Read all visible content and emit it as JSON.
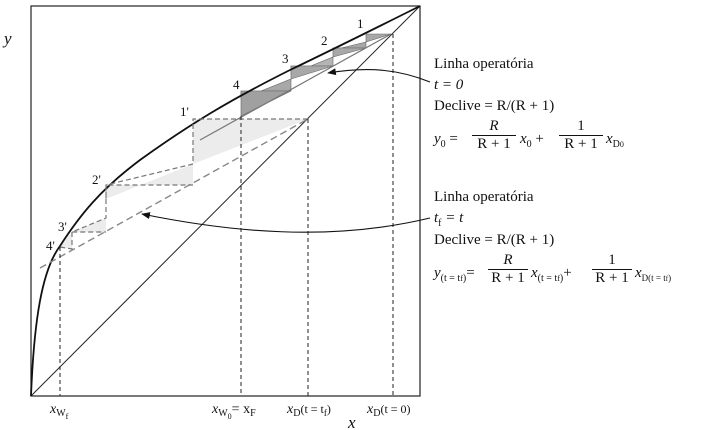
{
  "axes": {
    "x_label": "x",
    "y_label": "y"
  },
  "x_ticks": [
    {
      "id": "xwf",
      "main": "x",
      "sub": "W",
      "subsub": "f",
      "tail": ""
    },
    {
      "id": "xw0",
      "main": "x",
      "sub": "W",
      "subsub": "0",
      "tail": "= x",
      "tail_sub": "F"
    },
    {
      "id": "xdtf",
      "main": "x",
      "sub": "D",
      "tail": "(t = t",
      "tail_sub": "f",
      "tail_end": ")"
    },
    {
      "id": "xdt0",
      "main": "x",
      "sub": "D",
      "tail": "(t = 0)"
    }
  ],
  "stage_labels_t0": [
    "1",
    "2",
    "3",
    "4"
  ],
  "stage_labels_tf": [
    "1'",
    "2'",
    "3'",
    "4'"
  ],
  "annotation_t0": {
    "title": "Linha operatória",
    "time": "t = 0",
    "slope": "Declive = R/(R + 1)",
    "eq_lhs": "y",
    "eq_lhs_sub": "0",
    "eq_frac1_num": "R",
    "eq_frac1_den": "R + 1",
    "eq_var1": "x",
    "eq_var1_sub": "0",
    "eq_plus": "+",
    "eq_frac2_num": "1",
    "eq_frac2_den": "R + 1",
    "eq_var2": "x",
    "eq_var2_sub": "D",
    "eq_var2_subsub": "0"
  },
  "annotation_tf": {
    "title": "Linha operatória",
    "time": "t",
    "time_sub": "f",
    "time_rhs": "= t",
    "slope": "Declive = R/(R + 1)",
    "eq_lhs": "y",
    "eq_lhs_sub": "(t = t",
    "eq_lhs_subsub": "f",
    "eq_lhs_sub_end": ")",
    "eq_frac1_num": "R",
    "eq_frac1_den": "R + 1",
    "eq_var1": "x",
    "eq_var1_sub": "(t = t",
    "eq_var1_subsub": "f",
    "eq_var1_sub_end": ")",
    "eq_plus": "+",
    "eq_frac2_num": "1",
    "eq_frac2_den": "R + 1",
    "eq_var2": "x",
    "eq_var2_sub": "D(t = t",
    "eq_var2_subsub": "f",
    "eq_var2_sub_end": ")"
  },
  "colors": {
    "stage_fill_t0": "#a8a8a8",
    "stage_fill_tf": "#ececec",
    "curve": "#111111",
    "dashed": "#888888"
  }
}
